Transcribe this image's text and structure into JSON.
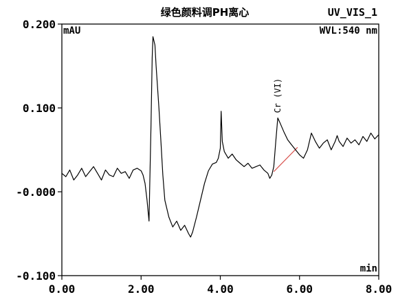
{
  "chart_data": {
    "type": "line",
    "title": "绿色颜料调PH离心",
    "channel": "UV_VIS_1",
    "wavelength": "WVL:540 nm",
    "ylabel": "mAU",
    "xlabel": "min",
    "xlim": [
      0,
      8
    ],
    "ylim": [
      -0.1,
      0.2
    ],
    "x_ticks": [
      "0.00",
      "2.00",
      "4.00",
      "6.00",
      "8.00"
    ],
    "y_ticks": [
      "-0.100",
      "-0.000",
      "0.100",
      "0.200"
    ],
    "grid": false,
    "annotations": [
      {
        "text": "Cr (VI)",
        "x": 5.45,
        "y": 0.089
      }
    ],
    "baseline": {
      "x": [
        5.35,
        5.95
      ],
      "y": [
        0.024,
        0.053
      ]
    },
    "series": [
      {
        "x": [
          0.0,
          0.1,
          0.2,
          0.3,
          0.4,
          0.5,
          0.6,
          0.7,
          0.8,
          0.9,
          1.0,
          1.1,
          1.2,
          1.3,
          1.4,
          1.5,
          1.6,
          1.7,
          1.8,
          1.9,
          2.0,
          2.05,
          2.1,
          2.15,
          2.2,
          2.22,
          2.25,
          2.28,
          2.3,
          2.35,
          2.38,
          2.45,
          2.5,
          2.55,
          2.6,
          2.7,
          2.8,
          2.9,
          3.0,
          3.1,
          3.2,
          3.25,
          3.3,
          3.4,
          3.5,
          3.6,
          3.7,
          3.8,
          3.9,
          3.95,
          4.0,
          4.02,
          4.05,
          4.1,
          4.2,
          4.3,
          4.4,
          4.5,
          4.6,
          4.7,
          4.8,
          4.9,
          5.0,
          5.1,
          5.2,
          5.25,
          5.3,
          5.35,
          5.4,
          5.45,
          5.5,
          5.6,
          5.7,
          5.8,
          5.9,
          6.0,
          6.1,
          6.2,
          6.3,
          6.4,
          6.5,
          6.6,
          6.7,
          6.8,
          6.9,
          6.95,
          7.0,
          7.1,
          7.2,
          7.3,
          7.4,
          7.5,
          7.6,
          7.7,
          7.8,
          7.9,
          8.0
        ],
        "y": [
          0.022,
          0.018,
          0.026,
          0.014,
          0.02,
          0.028,
          0.018,
          0.024,
          0.03,
          0.022,
          0.014,
          0.026,
          0.02,
          0.018,
          0.028,
          0.022,
          0.024,
          0.016,
          0.026,
          0.028,
          0.025,
          0.02,
          0.01,
          -0.01,
          -0.035,
          0.01,
          0.08,
          0.16,
          0.185,
          0.175,
          0.15,
          0.1,
          0.06,
          0.02,
          -0.01,
          -0.03,
          -0.042,
          -0.035,
          -0.046,
          -0.04,
          -0.05,
          -0.054,
          -0.048,
          -0.03,
          -0.01,
          0.01,
          0.025,
          0.033,
          0.035,
          0.04,
          0.052,
          0.096,
          0.06,
          0.048,
          0.04,
          0.045,
          0.038,
          0.034,
          0.03,
          0.034,
          0.028,
          0.03,
          0.032,
          0.026,
          0.022,
          0.016,
          0.02,
          0.03,
          0.06,
          0.088,
          0.083,
          0.072,
          0.062,
          0.056,
          0.05,
          0.044,
          0.04,
          0.05,
          0.07,
          0.06,
          0.052,
          0.058,
          0.062,
          0.05,
          0.06,
          0.067,
          0.06,
          0.054,
          0.064,
          0.058,
          0.062,
          0.056,
          0.066,
          0.06,
          0.07,
          0.063,
          0.068
        ]
      }
    ]
  }
}
